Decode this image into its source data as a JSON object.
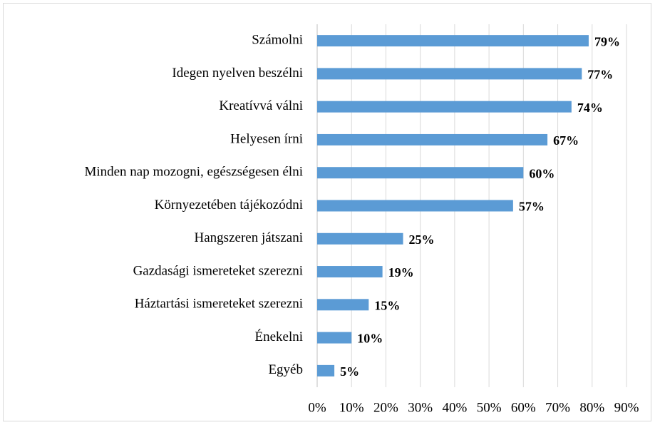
{
  "chart_data": {
    "type": "bar",
    "orientation": "horizontal",
    "categories": [
      "Számolni",
      "Idegen nyelven beszélni",
      "Kreatívvá válni",
      "Helyesen írni",
      "Minden nap mozogni, egészségesen élni",
      "Környezetében tájékozódni",
      "Hangszeren játszani",
      "Gazdasági ismereteket szerezni",
      "Háztartási ismereteket szerezni",
      "Énekelni",
      "Egyéb"
    ],
    "values": [
      79,
      77,
      74,
      67,
      60,
      57,
      25,
      19,
      15,
      10,
      5
    ],
    "value_labels": [
      "79%",
      "77%",
      "74%",
      "67%",
      "60%",
      "57%",
      "25%",
      "19%",
      "15%",
      "10%",
      "5%"
    ],
    "color": "#5b9bd5",
    "xlim": [
      0,
      90
    ],
    "xticks": [
      {
        "value": 0,
        "label": "0%"
      },
      {
        "value": 10,
        "label": "10%"
      },
      {
        "value": 20,
        "label": "20%"
      },
      {
        "value": 30,
        "label": "30%"
      },
      {
        "value": 40,
        "label": "40%"
      },
      {
        "value": 50,
        "label": "50%"
      },
      {
        "value": 60,
        "label": "60%"
      },
      {
        "value": 70,
        "label": "70%"
      },
      {
        "value": 80,
        "label": "80%"
      },
      {
        "value": 90,
        "label": "90%"
      }
    ],
    "grid": true
  }
}
